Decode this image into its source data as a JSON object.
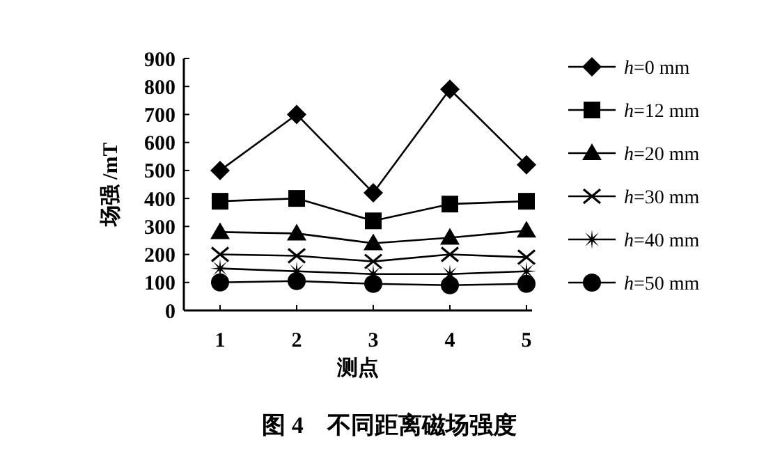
{
  "chart_data": {
    "type": "line",
    "title": "图 4　不同距离磁场强度",
    "xlabel": "测点",
    "ylabel": "场强 /mT",
    "categories": [
      "1",
      "2",
      "3",
      "4",
      "5"
    ],
    "ylim": [
      0,
      900
    ],
    "yticks": [
      0,
      100,
      200,
      300,
      400,
      500,
      600,
      700,
      800,
      900
    ],
    "grid": false,
    "legend": "right",
    "line_style": "solid",
    "series": [
      {
        "name": "h=0 mm",
        "color": "#000000",
        "marker": "diamond",
        "values": [
          500,
          700,
          420,
          790,
          520
        ]
      },
      {
        "name": "h=12 mm",
        "color": "#000000",
        "marker": "square",
        "values": [
          390,
          400,
          320,
          380,
          390
        ]
      },
      {
        "name": "h=20 mm",
        "color": "#000000",
        "marker": "triangle",
        "values": [
          280,
          275,
          240,
          260,
          285
        ]
      },
      {
        "name": "h=30 mm",
        "color": "#000000",
        "marker": "cross",
        "values": [
          200,
          195,
          175,
          200,
          190
        ]
      },
      {
        "name": "h=40 mm",
        "color": "#000000",
        "marker": "star",
        "values": [
          150,
          140,
          130,
          130,
          140
        ]
      },
      {
        "name": "h=50 mm",
        "color": "#000000",
        "marker": "circle",
        "values": [
          100,
          105,
          95,
          90,
          95
        ]
      }
    ]
  }
}
